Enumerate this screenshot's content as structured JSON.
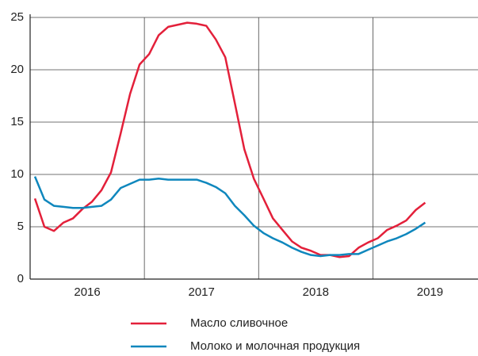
{
  "chart_data": {
    "type": "line",
    "x": [
      2016.042,
      2016.125,
      2016.208,
      2016.292,
      2016.375,
      2016.458,
      2016.542,
      2016.625,
      2016.708,
      2016.792,
      2016.875,
      2016.958,
      2017.042,
      2017.125,
      2017.208,
      2017.292,
      2017.375,
      2017.458,
      2017.542,
      2017.625,
      2017.708,
      2017.792,
      2017.875,
      2017.958,
      2018.042,
      2018.125,
      2018.208,
      2018.292,
      2018.375,
      2018.458,
      2018.542,
      2018.625,
      2018.708,
      2018.792,
      2018.875,
      2018.958,
      2019.042,
      2019.125,
      2019.208,
      2019.292,
      2019.375,
      2019.458
    ],
    "series": [
      {
        "name": "Масло сливочное",
        "color": "#e3203a",
        "values": [
          7.7,
          5.0,
          4.6,
          5.4,
          5.8,
          6.7,
          7.4,
          8.5,
          10.2,
          13.9,
          17.7,
          20.5,
          21.5,
          23.3,
          24.1,
          24.3,
          24.5,
          24.4,
          24.2,
          22.9,
          21.2,
          16.8,
          12.4,
          9.6,
          7.7,
          5.8,
          4.7,
          3.6,
          3.0,
          2.7,
          2.3,
          2.3,
          2.1,
          2.2,
          3.0,
          3.5,
          3.9,
          4.7,
          5.1,
          5.6,
          6.6,
          7.3
        ]
      },
      {
        "name": "Молоко и молочная продукция",
        "color": "#0f87bd",
        "values": [
          9.8,
          7.6,
          7.0,
          6.9,
          6.8,
          6.8,
          6.9,
          7.0,
          7.6,
          8.7,
          9.1,
          9.5,
          9.5,
          9.6,
          9.5,
          9.5,
          9.5,
          9.5,
          9.2,
          8.8,
          8.2,
          7.0,
          6.1,
          5.1,
          4.4,
          3.9,
          3.5,
          3.0,
          2.6,
          2.3,
          2.2,
          2.3,
          2.3,
          2.4,
          2.4,
          2.8,
          3.2,
          3.6,
          3.9,
          4.3,
          4.8,
          5.4
        ]
      }
    ],
    "xlim": [
      2016,
      2019.92
    ],
    "xticks": [
      {
        "value": 2016.5,
        "label": "2016"
      },
      {
        "value": 2017.5,
        "label": "2017"
      },
      {
        "value": 2018.5,
        "label": "2018"
      },
      {
        "value": 2019.5,
        "label": "2019"
      }
    ],
    "xgrid": [
      2017,
      2018,
      2019
    ],
    "ylim": [
      0,
      25
    ],
    "yticks": [
      0,
      5,
      10,
      15,
      20,
      25
    ],
    "grid": true,
    "legend": "bottom"
  }
}
